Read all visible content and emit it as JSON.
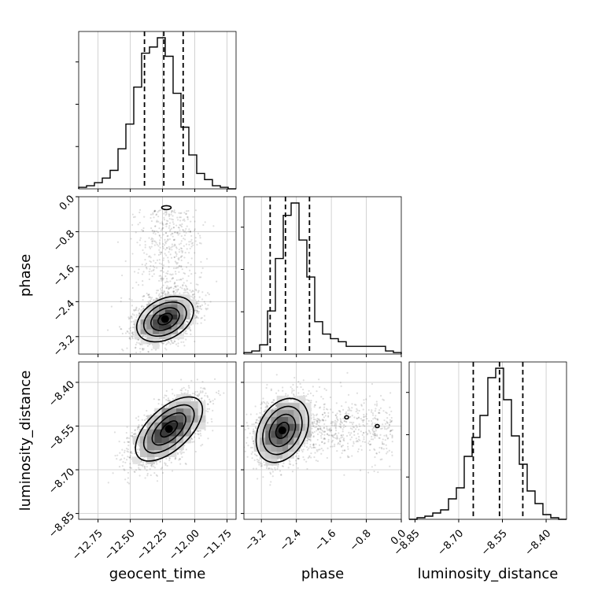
{
  "chart_data": {
    "type": "corner",
    "parameters": [
      "geocent_time",
      "phase",
      "luminosity_distance"
    ],
    "axis_labels": {
      "geocent_time": "geocent_time",
      "phase": "phase",
      "luminosity_distance": "luminosity_distance"
    },
    "ranges": {
      "geocent_time": [
        -12.9,
        -11.68
      ],
      "phase": [
        -3.6,
        0.0
      ],
      "luminosity_distance": [
        -8.87,
        -8.33
      ]
    },
    "ticks": {
      "geocent_time": {
        "values": [
          -12.75,
          -12.5,
          -12.25,
          -12.0,
          -11.75
        ],
        "labels": [
          "−12.75",
          "−12.50",
          "−12.25",
          "−12.00",
          "−11.75"
        ]
      },
      "phase": {
        "values": [
          -3.2,
          -2.4,
          -1.6,
          -0.8,
          0.0
        ],
        "labels": [
          "−3.2",
          "−2.4",
          "−1.6",
          "−0.8",
          "0.0"
        ]
      },
      "luminosity_distance": {
        "values": [
          -8.85,
          -8.7,
          -8.55,
          -8.4
        ],
        "labels": [
          "−8.85",
          "−8.70",
          "−8.55",
          "−8.40"
        ]
      }
    },
    "quantiles": {
      "geocent_time": [
        -12.39,
        -12.24,
        -12.09
      ],
      "phase": [
        -3.0,
        -2.65,
        -2.1
      ],
      "luminosity_distance": [
        -8.65,
        -8.56,
        -8.48
      ]
    },
    "histograms": {
      "geocent_time": {
        "range": [
          -12.9,
          -11.68
        ],
        "counts": [
          1,
          2,
          4,
          7,
          12,
          26,
          42,
          66,
          88,
          92,
          98,
          86,
          62,
          40,
          22,
          10,
          6,
          2,
          1,
          0
        ]
      },
      "phase": {
        "range": [
          -3.6,
          0.0
        ],
        "counts": [
          1,
          2,
          6,
          28,
          62,
          90,
          98,
          74,
          50,
          21,
          13,
          10,
          8,
          5,
          5,
          5,
          5,
          5,
          2,
          1
        ]
      },
      "luminosity_distance": {
        "range": [
          -8.87,
          -8.33
        ],
        "counts": [
          0,
          1,
          2,
          4,
          6,
          13,
          20,
          40,
          52,
          66,
          90,
          96,
          76,
          53,
          35,
          18,
          10,
          3,
          1,
          0
        ]
      }
    },
    "joint": [
      {
        "x": "geocent_time",
        "y": "phase",
        "center": [
          -12.23,
          -2.8
        ],
        "spread": [
          0.11,
          0.26
        ],
        "correlation": 0.35,
        "tail": {
          "x_mean": -12.2,
          "x_sd": 0.13,
          "y_from": -2.6,
          "y_to": -0.3,
          "fraction": 0.2
        },
        "island": [
          -12.22,
          -0.25
        ]
      },
      {
        "x": "geocent_time",
        "y": "luminosity_distance",
        "center": [
          -12.2,
          -8.56
        ],
        "spread": [
          0.13,
          0.055
        ],
        "correlation": 0.6
      },
      {
        "x": "phase",
        "y": "luminosity_distance",
        "center": [
          -2.72,
          -8.565
        ],
        "spread": [
          0.3,
          0.055
        ],
        "correlation": 0.3,
        "tail": {
          "x_from": -2.2,
          "x_to": -0.2,
          "y_mean": -8.56,
          "y_sd": 0.05,
          "fraction": 0.2
        },
        "islands": [
          [
            -1.25,
            -8.52
          ],
          [
            -0.55,
            -8.55
          ]
        ]
      }
    ],
    "contour_levels": [
      "0.5",
      "1.0",
      "1.5",
      "2.0"
    ],
    "grid": true,
    "legend": "none"
  }
}
